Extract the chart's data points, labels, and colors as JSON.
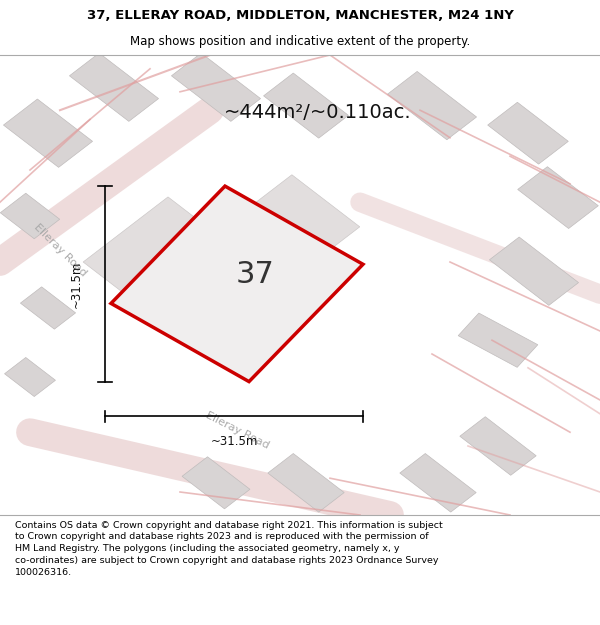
{
  "title_line1": "37, ELLERAY ROAD, MIDDLETON, MANCHESTER, M24 1NY",
  "title_line2": "Map shows position and indicative extent of the property.",
  "area_text": "~444m²/~0.110ac.",
  "property_number": "37",
  "dim_vertical": "~31.5m",
  "dim_horizontal": "~31.5m",
  "road_label1": "Elleray Road",
  "road_label2": "Elleray Road",
  "footer_lines": [
    "Contains OS data © Crown copyright and database right 2021. This information is subject",
    "to Crown copyright and database rights 2023 and is reproduced with the permission of",
    "HM Land Registry. The polygons (including the associated geometry, namely x, y",
    "co-ordinates) are subject to Crown copyright and database rights 2023 Ordnance Survey",
    "100026316."
  ],
  "map_bg": "#f0eeee",
  "outline_color": "#cc0000",
  "building_color": "#d8d4d4",
  "road_color": "#deb8b8",
  "boundary_color": "#e0a0a0"
}
